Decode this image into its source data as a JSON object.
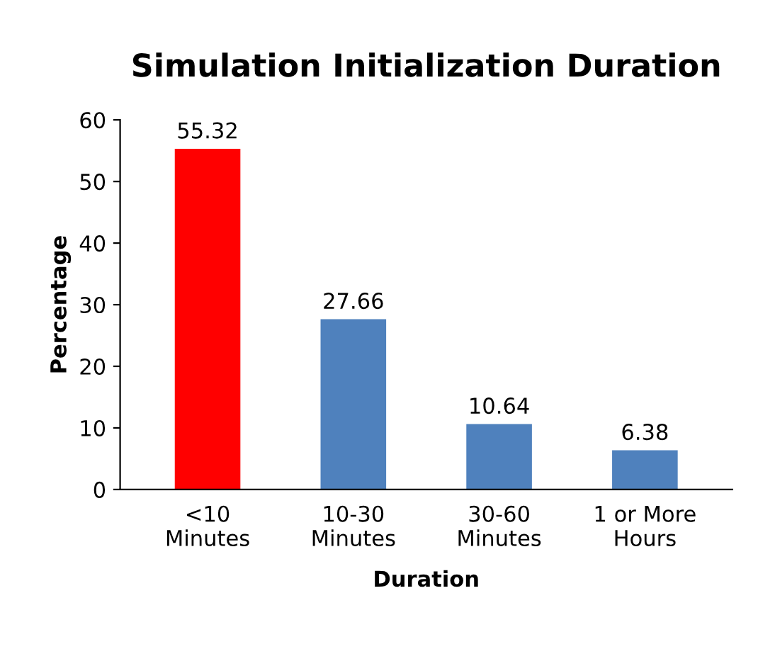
{
  "chart_data": {
    "type": "bar",
    "title": "Simulation Initialization Duration",
    "xlabel": "Duration",
    "ylabel": "Percentage",
    "categories": [
      "<10\nMinutes",
      "10-30\nMinutes",
      "30-60\nMinutes",
      "1 or More\nHours"
    ],
    "values": [
      55.32,
      27.66,
      10.64,
      6.38
    ],
    "colors": [
      "#ff0000",
      "#4f81bd",
      "#4f81bd",
      "#4f81bd"
    ],
    "ylim": [
      0,
      60
    ],
    "yticks": [
      0,
      10,
      20,
      30,
      40,
      50,
      60
    ],
    "grid": false,
    "data_labels": true
  }
}
